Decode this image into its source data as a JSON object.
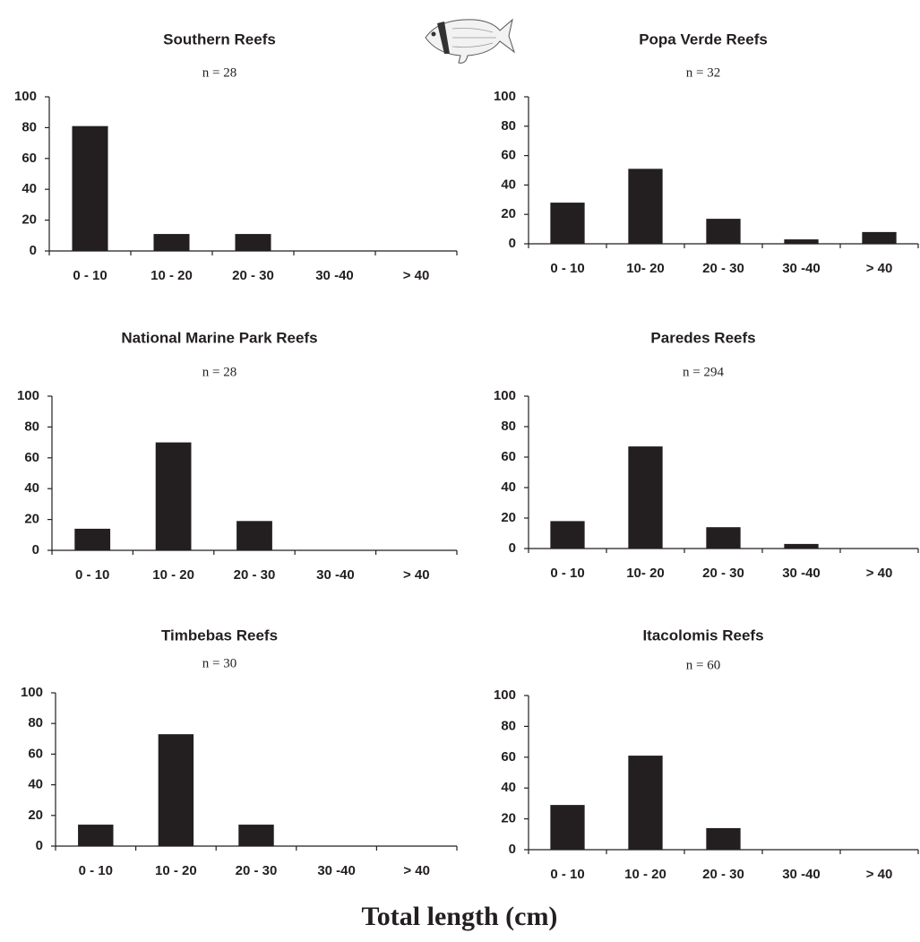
{
  "chart_data": [
    {
      "type": "bar",
      "title": "Southern Reefs",
      "subtitle": "n = 28",
      "categories": [
        "0 - 10",
        "10 - 20",
        "20 - 30",
        "30 -40",
        "> 40"
      ],
      "values": [
        81,
        11,
        11,
        0,
        0
      ],
      "color": "#231f20",
      "ylim": [
        0,
        100
      ],
      "yticks": [
        0,
        20,
        40,
        60,
        80,
        100
      ]
    },
    {
      "type": "bar",
      "title": "Popa Verde Reefs",
      "subtitle": "n = 32",
      "categories": [
        "0 - 10",
        "10- 20",
        "20 - 30",
        "30 -40",
        "> 40"
      ],
      "values": [
        28,
        51,
        17,
        3,
        8
      ],
      "color": "#231f20",
      "ylim": [
        0,
        100
      ],
      "yticks": [
        0,
        20,
        40,
        60,
        80,
        100
      ]
    },
    {
      "type": "bar",
      "title": "National Marine Park Reefs",
      "subtitle": "n = 28",
      "categories": [
        "0 - 10",
        "10 - 20",
        "20 - 30",
        "30 -40",
        "> 40"
      ],
      "values": [
        14,
        70,
        19,
        0,
        0
      ],
      "color": "#231f20",
      "ylim": [
        0,
        100
      ],
      "yticks": [
        0,
        20,
        40,
        60,
        80,
        100
      ]
    },
    {
      "type": "bar",
      "title": "Paredes Reefs",
      "subtitle": "n = 294",
      "categories": [
        "0 - 10",
        "10- 20",
        "20 - 30",
        "30 -40",
        "> 40"
      ],
      "values": [
        18,
        67,
        14,
        3,
        0
      ],
      "color": "#231f20",
      "ylim": [
        0,
        100
      ],
      "yticks": [
        0,
        20,
        40,
        60,
        80,
        100
      ]
    },
    {
      "type": "bar",
      "title": "Timbebas Reefs",
      "subtitle": "n = 30",
      "categories": [
        "0 - 10",
        "10 - 20",
        "20 - 30",
        "30 -40",
        "> 40"
      ],
      "values": [
        14,
        73,
        14,
        0,
        0
      ],
      "color": "#231f20",
      "ylim": [
        0,
        100
      ],
      "yticks": [
        0,
        20,
        40,
        60,
        80,
        100
      ]
    },
    {
      "type": "bar",
      "title": "Itacolomis Reefs",
      "subtitle": "n = 60",
      "categories": [
        "0 - 10",
        "10 - 20",
        "20 - 30",
        "30 -40",
        "> 40"
      ],
      "values": [
        29,
        61,
        14,
        0,
        0
      ],
      "color": "#231f20",
      "ylim": [
        0,
        100
      ],
      "yticks": [
        0,
        20,
        40,
        60,
        80,
        100
      ]
    }
  ],
  "xlabel": "Total length (cm)"
}
